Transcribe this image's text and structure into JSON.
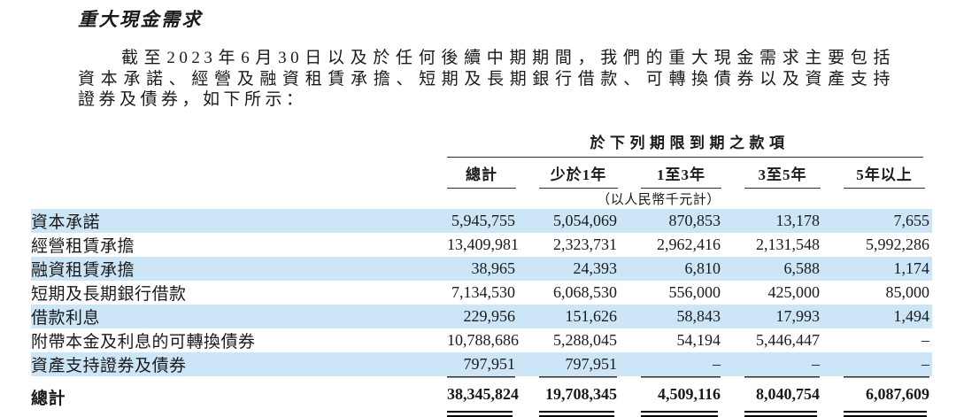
{
  "page": {
    "title": "重大現金需求",
    "intro_lines": [
      "截至2023年6月30日以及於任何後續中期期間，我們的重大現金需求主要包括",
      "資本承諾、經營及融資租賃承擔、短期及長期銀行借款、可轉換債券以及資產支持",
      "證券及債券，如下所示："
    ]
  },
  "table": {
    "spanner": "於下列期限到期之款項",
    "columns": [
      "總計",
      "少於1年",
      "1至3年",
      "3至5年",
      "5年以上"
    ],
    "unit_note": "（以人民幣千元計）",
    "rows": [
      {
        "label": "資本承諾",
        "values": [
          "5,945,755",
          "5,054,069",
          "870,853",
          "13,178",
          "7,655"
        ]
      },
      {
        "label": "經營租賃承擔",
        "values": [
          "13,409,981",
          "2,323,731",
          "2,962,416",
          "2,131,548",
          "5,992,286"
        ]
      },
      {
        "label": "融資租賃承擔",
        "values": [
          "38,965",
          "24,393",
          "6,810",
          "6,588",
          "1,174"
        ]
      },
      {
        "label": "短期及長期銀行借款",
        "values": [
          "7,134,530",
          "6,068,530",
          "556,000",
          "425,000",
          "85,000"
        ]
      },
      {
        "label": "借款利息",
        "values": [
          "229,956",
          "151,626",
          "58,843",
          "17,993",
          "1,494"
        ]
      },
      {
        "label": "附帶本金及利息的可轉換債券",
        "values": [
          "10,788,686",
          "5,288,045",
          "54,194",
          "5,446,447",
          "–"
        ]
      },
      {
        "label": "資產支持證券及債券",
        "values": [
          "797,951",
          "797,951",
          "–",
          "–",
          "–"
        ]
      }
    ],
    "total_row": {
      "label": "總計",
      "values": [
        "38,345,824",
        "19,708,345",
        "4,509,116",
        "8,040,754",
        "6,087,609"
      ]
    },
    "colors": {
      "row_highlight": "#cce6f7",
      "text": "#1a1a1a",
      "rule": "#2f2f2f"
    }
  }
}
